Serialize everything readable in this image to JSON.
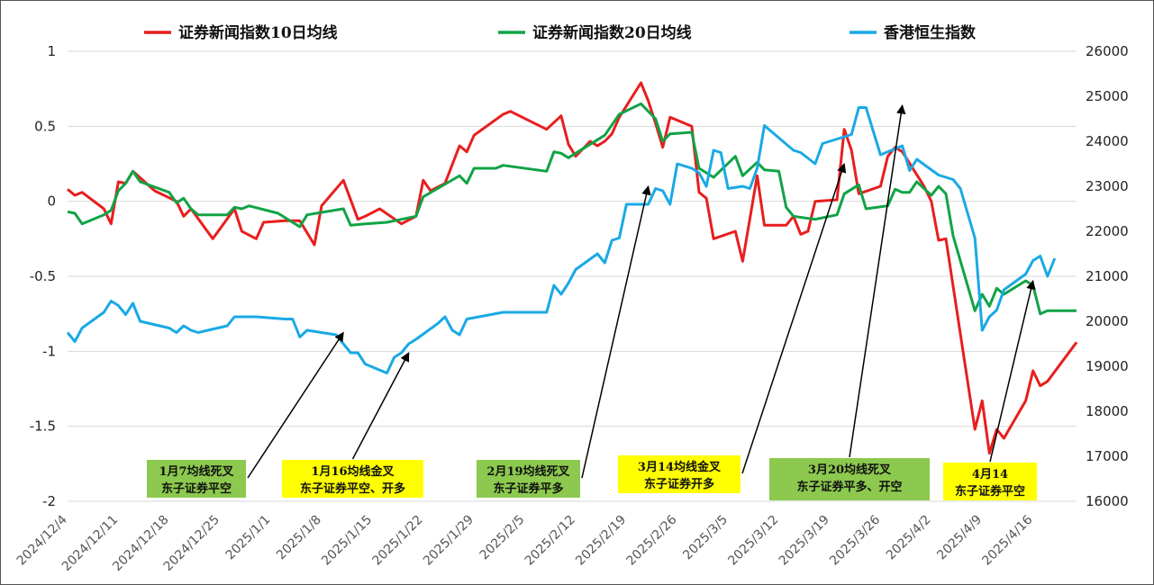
{
  "chart_data": {
    "type": "line",
    "title": "",
    "x_ticks": [
      "2024/12/4",
      "2024/12/11",
      "2024/12/18",
      "2024/12/25",
      "2025/1/1",
      "2025/1/8",
      "2025/1/15",
      "2025/1/22",
      "2025/1/29",
      "2025/2/5",
      "2025/2/12",
      "2025/2/19",
      "2025/2/26",
      "2025/3/5",
      "2025/3/12",
      "2025/3/19",
      "2025/3/26",
      "2025/4/2",
      "2025/4/9",
      "2025/4/16"
    ],
    "x_range": [
      "2024/12/4",
      "2025/4/22"
    ],
    "y_left": {
      "range": [
        -2,
        1
      ],
      "ticks": [
        "1",
        "0.5",
        "0",
        "-0.5",
        "-1",
        "-1.5",
        "-2"
      ]
    },
    "y_right": {
      "range": [
        16000,
        26000
      ],
      "ticks": [
        "26000",
        "25000",
        "24000",
        "23000",
        "22000",
        "21000",
        "20000",
        "19000",
        "18000",
        "17000",
        "16000"
      ]
    },
    "grid": true,
    "legend_position": "top",
    "series": [
      {
        "name": "证券新闻指数10日均线",
        "color": "#e81e1e",
        "axis": "left",
        "points": [
          [
            "2024/12/4",
            0.08
          ],
          [
            "2024/12/5",
            0.04
          ],
          [
            "2024/12/6",
            0.06
          ],
          [
            "2024/12/9",
            -0.05
          ],
          [
            "2024/12/10",
            -0.15
          ],
          [
            "2024/12/11",
            0.13
          ],
          [
            "2024/12/12",
            0.12
          ],
          [
            "2024/12/13",
            0.2
          ],
          [
            "2024/12/16",
            0.07
          ],
          [
            "2024/12/19",
            0.0
          ],
          [
            "2024/12/20",
            -0.1
          ],
          [
            "2024/12/21",
            -0.05
          ],
          [
            "2024/12/24",
            -0.25
          ],
          [
            "2024/12/27",
            -0.05
          ],
          [
            "2024/12/28",
            -0.2
          ],
          [
            "2024/12/30",
            -0.25
          ],
          [
            "2024/12/31",
            -0.14
          ],
          [
            "2025/1/3",
            -0.13
          ],
          [
            "2025/1/5",
            -0.13
          ],
          [
            "2025/1/7",
            -0.29
          ],
          [
            "2025/1/8",
            -0.03
          ],
          [
            "2025/1/11",
            0.14
          ],
          [
            "2025/1/13",
            -0.12
          ],
          [
            "2025/1/14",
            -0.1
          ],
          [
            "2025/1/16",
            -0.05
          ],
          [
            "2025/1/19",
            -0.15
          ],
          [
            "2025/1/21",
            -0.1
          ],
          [
            "2025/1/22",
            0.14
          ],
          [
            "2025/1/23",
            0.07
          ],
          [
            "2025/1/25",
            0.12
          ],
          [
            "2025/1/27",
            0.37
          ],
          [
            "2025/1/28",
            0.33
          ],
          [
            "2025/1/29",
            0.44
          ],
          [
            "2025/2/2",
            0.58
          ],
          [
            "2025/2/3",
            0.6
          ],
          [
            "2025/2/8",
            0.48
          ],
          [
            "2025/2/10",
            0.57
          ],
          [
            "2025/2/11",
            0.38
          ],
          [
            "2025/2/12",
            0.3
          ],
          [
            "2025/2/14",
            0.4
          ],
          [
            "2025/2/15",
            0.37
          ],
          [
            "2025/2/16",
            0.4
          ],
          [
            "2025/2/17",
            0.45
          ],
          [
            "2025/2/18",
            0.56
          ],
          [
            "2025/2/21",
            0.79
          ],
          [
            "2025/2/22",
            0.67
          ],
          [
            "2025/2/23",
            0.52
          ],
          [
            "2025/2/24",
            0.36
          ],
          [
            "2025/2/25",
            0.56
          ],
          [
            "2025/2/28",
            0.5
          ],
          [
            "2025/3/1",
            0.06
          ],
          [
            "2025/3/2",
            0.02
          ],
          [
            "2025/3/3",
            -0.25
          ],
          [
            "2025/3/6",
            -0.2
          ],
          [
            "2025/3/7",
            -0.4
          ],
          [
            "2025/3/9",
            0.17
          ],
          [
            "2025/3/10",
            -0.16
          ],
          [
            "2025/3/13",
            -0.16
          ],
          [
            "2025/3/14",
            -0.1
          ],
          [
            "2025/3/15",
            -0.22
          ],
          [
            "2025/3/16",
            -0.2
          ],
          [
            "2025/3/17",
            0.0
          ],
          [
            "2025/3/20",
            0.01
          ],
          [
            "2025/3/21",
            0.48
          ],
          [
            "2025/3/22",
            0.34
          ],
          [
            "2025/3/23",
            0.05
          ],
          [
            "2025/3/26",
            0.1
          ],
          [
            "2025/3/27",
            0.3
          ],
          [
            "2025/3/28",
            0.36
          ],
          [
            "2025/3/29",
            0.33
          ],
          [
            "2025/4/1",
            0.1
          ],
          [
            "2025/4/2",
            0.0
          ],
          [
            "2025/4/3",
            -0.26
          ],
          [
            "2025/4/4",
            -0.25
          ],
          [
            "2025/4/8",
            -1.52
          ],
          [
            "2025/4/9",
            -1.33
          ],
          [
            "2025/4/10",
            -1.68
          ],
          [
            "2025/4/11",
            -1.52
          ],
          [
            "2025/4/12",
            -1.58
          ],
          [
            "2025/4/15",
            -1.33
          ],
          [
            "2025/4/16",
            -1.13
          ],
          [
            "2025/4/17",
            -1.23
          ],
          [
            "2025/4/18",
            -1.2
          ],
          [
            "2025/4/22",
            -0.94
          ]
        ]
      },
      {
        "name": "证券新闻指数20日均线",
        "color": "#10a346",
        "axis": "left",
        "points": [
          [
            "2024/12/4",
            -0.07
          ],
          [
            "2024/12/5",
            -0.08
          ],
          [
            "2024/12/6",
            -0.15
          ],
          [
            "2024/12/9",
            -0.09
          ],
          [
            "2024/12/10",
            -0.06
          ],
          [
            "2024/12/11",
            0.07
          ],
          [
            "2024/12/12",
            0.12
          ],
          [
            "2024/12/13",
            0.2
          ],
          [
            "2024/12/14",
            0.13
          ],
          [
            "2024/12/18",
            0.06
          ],
          [
            "2024/12/19",
            -0.01
          ],
          [
            "2024/12/20",
            0.02
          ],
          [
            "2024/12/21",
            -0.05
          ],
          [
            "2024/12/22",
            -0.09
          ],
          [
            "2024/12/26",
            -0.09
          ],
          [
            "2024/12/27",
            -0.04
          ],
          [
            "2024/12/28",
            -0.05
          ],
          [
            "2024/12/29",
            -0.03
          ],
          [
            "2025/1/2",
            -0.08
          ],
          [
            "2025/1/5",
            -0.17
          ],
          [
            "2025/1/6",
            -0.09
          ],
          [
            "2025/1/11",
            -0.05
          ],
          [
            "2025/1/12",
            -0.16
          ],
          [
            "2025/1/14",
            -0.15
          ],
          [
            "2025/1/17",
            -0.14
          ],
          [
            "2025/1/19",
            -0.12
          ],
          [
            "2025/1/21",
            -0.1
          ],
          [
            "2025/1/22",
            0.03
          ],
          [
            "2025/1/27",
            0.17
          ],
          [
            "2025/1/28",
            0.12
          ],
          [
            "2025/1/29",
            0.22
          ],
          [
            "2025/2/1",
            0.22
          ],
          [
            "2025/2/2",
            0.24
          ],
          [
            "2025/2/8",
            0.2
          ],
          [
            "2025/2/9",
            0.33
          ],
          [
            "2025/2/10",
            0.32
          ],
          [
            "2025/2/11",
            0.29
          ],
          [
            "2025/2/14",
            0.38
          ],
          [
            "2025/2/16",
            0.44
          ],
          [
            "2025/2/18",
            0.58
          ],
          [
            "2025/2/21",
            0.65
          ],
          [
            "2025/2/23",
            0.55
          ],
          [
            "2025/2/24",
            0.4
          ],
          [
            "2025/2/25",
            0.45
          ],
          [
            "2025/2/28",
            0.46
          ],
          [
            "2025/3/1",
            0.22
          ],
          [
            "2025/3/3",
            0.16
          ],
          [
            "2025/3/6",
            0.3
          ],
          [
            "2025/3/7",
            0.17
          ],
          [
            "2025/3/9",
            0.26
          ],
          [
            "2025/3/10",
            0.21
          ],
          [
            "2025/3/12",
            0.2
          ],
          [
            "2025/3/13",
            -0.04
          ],
          [
            "2025/3/14",
            -0.1
          ],
          [
            "2025/3/17",
            -0.12
          ],
          [
            "2025/3/20",
            -0.09
          ],
          [
            "2025/3/21",
            0.05
          ],
          [
            "2025/3/23",
            0.11
          ],
          [
            "2025/3/24",
            -0.05
          ],
          [
            "2025/3/27",
            -0.03
          ],
          [
            "2025/3/28",
            0.08
          ],
          [
            "2025/3/29",
            0.06
          ],
          [
            "2025/3/30",
            0.06
          ],
          [
            "2025/3/31",
            0.13
          ],
          [
            "2025/4/2",
            0.04
          ],
          [
            "2025/4/3",
            0.1
          ],
          [
            "2025/4/4",
            0.05
          ],
          [
            "2025/4/5",
            -0.23
          ],
          [
            "2025/4/8",
            -0.73
          ],
          [
            "2025/4/9",
            -0.62
          ],
          [
            "2025/4/10",
            -0.7
          ],
          [
            "2025/4/11",
            -0.58
          ],
          [
            "2025/4/12",
            -0.62
          ],
          [
            "2025/4/15",
            -0.53
          ],
          [
            "2025/4/16",
            -0.56
          ],
          [
            "2025/4/17",
            -0.75
          ],
          [
            "2025/4/18",
            -0.73
          ],
          [
            "2025/4/22",
            -0.73
          ]
        ]
      },
      {
        "name": "香港恒生指数",
        "color": "#1aa9e5",
        "axis": "right",
        "points": [
          [
            "2024/12/4",
            19750
          ],
          [
            "2024/12/5",
            19550
          ],
          [
            "2024/12/6",
            19850
          ],
          [
            "2024/12/9",
            20200
          ],
          [
            "2024/12/10",
            20450
          ],
          [
            "2024/12/11",
            20350
          ],
          [
            "2024/12/12",
            20150
          ],
          [
            "2024/12/13",
            20400
          ],
          [
            "2024/12/14",
            20000
          ],
          [
            "2024/12/18",
            19850
          ],
          [
            "2024/12/19",
            19750
          ],
          [
            "2024/12/20",
            19900
          ],
          [
            "2024/12/21",
            19800
          ],
          [
            "2024/12/22",
            19750
          ],
          [
            "2024/12/26",
            19900
          ],
          [
            "2024/12/27",
            20100
          ],
          [
            "2024/12/30",
            20100
          ],
          [
            "2025/1/3",
            20050
          ],
          [
            "2025/1/4",
            20050
          ],
          [
            "2025/1/5",
            19650
          ],
          [
            "2025/1/6",
            19800
          ],
          [
            "2025/1/10",
            19700
          ],
          [
            "2025/1/12",
            19300
          ],
          [
            "2025/1/13",
            19300
          ],
          [
            "2025/1/14",
            19050
          ],
          [
            "2025/1/17",
            18850
          ],
          [
            "2025/1/18",
            19200
          ],
          [
            "2025/1/19",
            19300
          ],
          [
            "2025/1/20",
            19500
          ],
          [
            "2025/1/21",
            19600
          ],
          [
            "2025/1/24",
            19950
          ],
          [
            "2025/1/25",
            20100
          ],
          [
            "2025/1/26",
            19800
          ],
          [
            "2025/1/27",
            19700
          ],
          [
            "2025/1/28",
            20050
          ],
          [
            "2025/2/2",
            20200
          ],
          [
            "2025/2/8",
            20200
          ],
          [
            "2025/2/9",
            20800
          ],
          [
            "2025/2/10",
            20600
          ],
          [
            "2025/2/11",
            20850
          ],
          [
            "2025/2/12",
            21150
          ],
          [
            "2025/2/15",
            21500
          ],
          [
            "2025/2/16",
            21300
          ],
          [
            "2025/2/17",
            21800
          ],
          [
            "2025/2/18",
            21850
          ],
          [
            "2025/2/19",
            22600
          ],
          [
            "2025/2/22",
            22600
          ],
          [
            "2025/2/23",
            22950
          ],
          [
            "2025/2/24",
            22900
          ],
          [
            "2025/2/25",
            22600
          ],
          [
            "2025/2/26",
            23500
          ],
          [
            "2025/2/28",
            23400
          ],
          [
            "2025/3/1",
            23300
          ],
          [
            "2025/3/2",
            23000
          ],
          [
            "2025/3/3",
            23800
          ],
          [
            "2025/3/4",
            23750
          ],
          [
            "2025/3/5",
            22950
          ],
          [
            "2025/3/7",
            23000
          ],
          [
            "2025/3/8",
            22950
          ],
          [
            "2025/3/9",
            23400
          ],
          [
            "2025/3/10",
            24350
          ],
          [
            "2025/3/14",
            23800
          ],
          [
            "2025/3/15",
            23750
          ],
          [
            "2025/3/17",
            23500
          ],
          [
            "2025/3/18",
            23950
          ],
          [
            "2025/3/22",
            24150
          ],
          [
            "2025/3/23",
            24750
          ],
          [
            "2025/3/24",
            24750
          ],
          [
            "2025/3/26",
            23700
          ],
          [
            "2025/3/29",
            23900
          ],
          [
            "2025/3/30",
            23350
          ],
          [
            "2025/3/31",
            23600
          ],
          [
            "2025/4/3",
            23250
          ],
          [
            "2025/4/4",
            23200
          ],
          [
            "2025/4/5",
            23150
          ],
          [
            "2025/4/6",
            22950
          ],
          [
            "2025/4/8",
            21850
          ],
          [
            "2025/4/9",
            19800
          ],
          [
            "2025/4/10",
            20100
          ],
          [
            "2025/4/11",
            20250
          ],
          [
            "2025/4/12",
            20700
          ],
          [
            "2025/4/15",
            21050
          ],
          [
            "2025/4/16",
            21350
          ],
          [
            "2025/4/17",
            21450
          ],
          [
            "2025/4/18",
            21000
          ],
          [
            "2025/4/19",
            21400
          ]
        ]
      }
    ],
    "annotations": [
      {
        "lines": [
          "1月7均线死叉",
          "东子证券平空"
        ],
        "bg": "#8cc94e",
        "target": [
          "2025/1/11",
          19750
        ]
      },
      {
        "lines": [
          "1月16均线金叉",
          "东子证券平空、开多"
        ],
        "bg": "#ffff00",
        "target": [
          "2025/1/20",
          19300
        ]
      },
      {
        "lines": [
          "2月19均线死叉",
          "东子证券平多"
        ],
        "bg": "#8cc94e",
        "target": [
          "2025/2/22",
          23000
        ]
      },
      {
        "lines": [
          "3月14均线金叉",
          "东子证券开多"
        ],
        "bg": "#ffff00",
        "target": [
          "2025/3/21",
          23500
        ]
      },
      {
        "lines": [
          "3月20均线死叉",
          "东子证券平多、开空"
        ],
        "bg": "#8cc94e",
        "target": [
          "2025/3/29",
          24800
        ]
      },
      {
        "lines": [
          "4月14",
          "东子证券平空"
        ],
        "bg": "#ffff00",
        "target": [
          "2025/4/16",
          20900
        ]
      }
    ]
  }
}
